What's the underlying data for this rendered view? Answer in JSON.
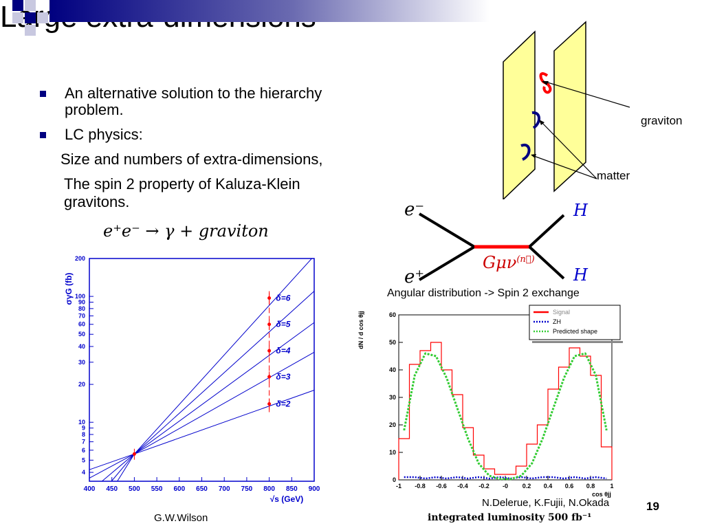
{
  "slide": {
    "title": "Large extra-dimensions",
    "bullets": [
      {
        "lines": [
          "An alternative solution to the hierarchy",
          "problem."
        ]
      },
      {
        "lines": [
          "LC physics:"
        ]
      }
    ],
    "sub_lines": [
      "Size and numbers of extra-dimensions,",
      "The spin 2 property of Kaluza-Klein",
      "gravitons."
    ],
    "equation": "e⁺e⁻ → γ + graviton",
    "page_number": "19",
    "credit_left": "G.W.Wilson",
    "credit_right": "N.Delerue, K.Fujii, N.Okada",
    "luminosity_label": "integrated luminosity 500 fb⁻¹"
  },
  "branes": {
    "graviton_label": "graviton",
    "matter_label": "matter"
  },
  "feynman": {
    "in_top": "e⁻",
    "in_bottom": "e⁺",
    "out_top": "H",
    "out_bottom": "H",
    "propagator": "Gμν",
    "propagator_sup": "(n⃗)"
  },
  "colors": {
    "bullet": "#000080",
    "brane_fill": "#ffff99",
    "graviton_loop": "#ff0000",
    "matter_loop": "#000080",
    "chart_blue": "#0000cc",
    "signal_red": "#ff0000",
    "zh_blue": "#0000cc",
    "predicted_green": "#33cc33"
  },
  "chart_data": [
    {
      "type": "line",
      "xlabel": "√s (GeV)",
      "ylabel": "σγG (fb)",
      "xlim": [
        400,
        900
      ],
      "ylim": [
        3.4,
        200
      ],
      "log_y": true,
      "x_ticks": [
        400,
        450,
        500,
        550,
        600,
        650,
        700,
        750,
        800,
        850,
        900
      ],
      "y_ticks": [
        4,
        5,
        6,
        7,
        8,
        9,
        10,
        20,
        30,
        40,
        50,
        60,
        70,
        80,
        90,
        100,
        200
      ],
      "x": [
        400,
        500,
        900
      ],
      "series": [
        {
          "name": "δ=6",
          "values": [
            1.5,
            5.6,
            210
          ]
        },
        {
          "name": "δ=5",
          "values": [
            2.1,
            5.6,
            110
          ]
        },
        {
          "name": "δ=4",
          "values": [
            2.8,
            5.6,
            62
          ]
        },
        {
          "name": "δ=3",
          "values": [
            3.6,
            5.6,
            36
          ]
        },
        {
          "name": "δ=2",
          "values": [
            4.2,
            5.6,
            18
          ]
        }
      ],
      "points": [
        {
          "x": 500,
          "y": 5.6
        },
        {
          "x": 800,
          "y": 97
        },
        {
          "x": 800,
          "y": 60
        },
        {
          "x": 800,
          "y": 37
        },
        {
          "x": 800,
          "y": 23
        },
        {
          "x": 800,
          "y": 14
        }
      ]
    },
    {
      "type": "line",
      "title": "Angular distribution -> Spin 2 exchange",
      "xlabel": "cos θjj",
      "ylabel": "dN / d cos θjj",
      "xlim": [
        -1,
        1
      ],
      "ylim": [
        0,
        60
      ],
      "x_ticks": [
        "-1",
        "-0.8",
        "-0.6",
        "-0.4",
        "-0.2",
        "-0",
        "0.2",
        "0.4",
        "0.6",
        "0.8",
        "1"
      ],
      "y_ticks": [
        "0",
        "10",
        "20",
        "30",
        "40",
        "50",
        "60"
      ],
      "legend": [
        "Signal",
        "ZH",
        "Predicted shape"
      ],
      "legend_placement": "top-right",
      "x": [
        -0.95,
        -0.85,
        -0.75,
        -0.65,
        -0.55,
        -0.45,
        -0.35,
        -0.25,
        -0.15,
        -0.05,
        0.05,
        0.15,
        0.25,
        0.35,
        0.45,
        0.55,
        0.65,
        0.75,
        0.85,
        0.95
      ],
      "series": [
        {
          "name": "Signal",
          "values": [
            15,
            42,
            47,
            50,
            40,
            31,
            19,
            9,
            4,
            2,
            2,
            5,
            13,
            20,
            33,
            41,
            48,
            45,
            38,
            12
          ]
        },
        {
          "name": "ZH",
          "values": [
            1,
            1,
            0.5,
            1,
            0.5,
            1,
            0.5,
            1,
            0.5,
            1,
            0.5,
            1,
            0.5,
            1,
            1,
            0.5,
            1,
            0.5,
            1,
            0.5
          ]
        },
        {
          "name": "Predicted shape",
          "values": [
            18,
            38,
            46,
            45,
            37,
            26,
            15,
            6,
            1.5,
            0.3,
            0.3,
            1.5,
            6,
            15,
            26,
            37,
            45,
            46,
            38,
            18
          ]
        }
      ]
    }
  ]
}
